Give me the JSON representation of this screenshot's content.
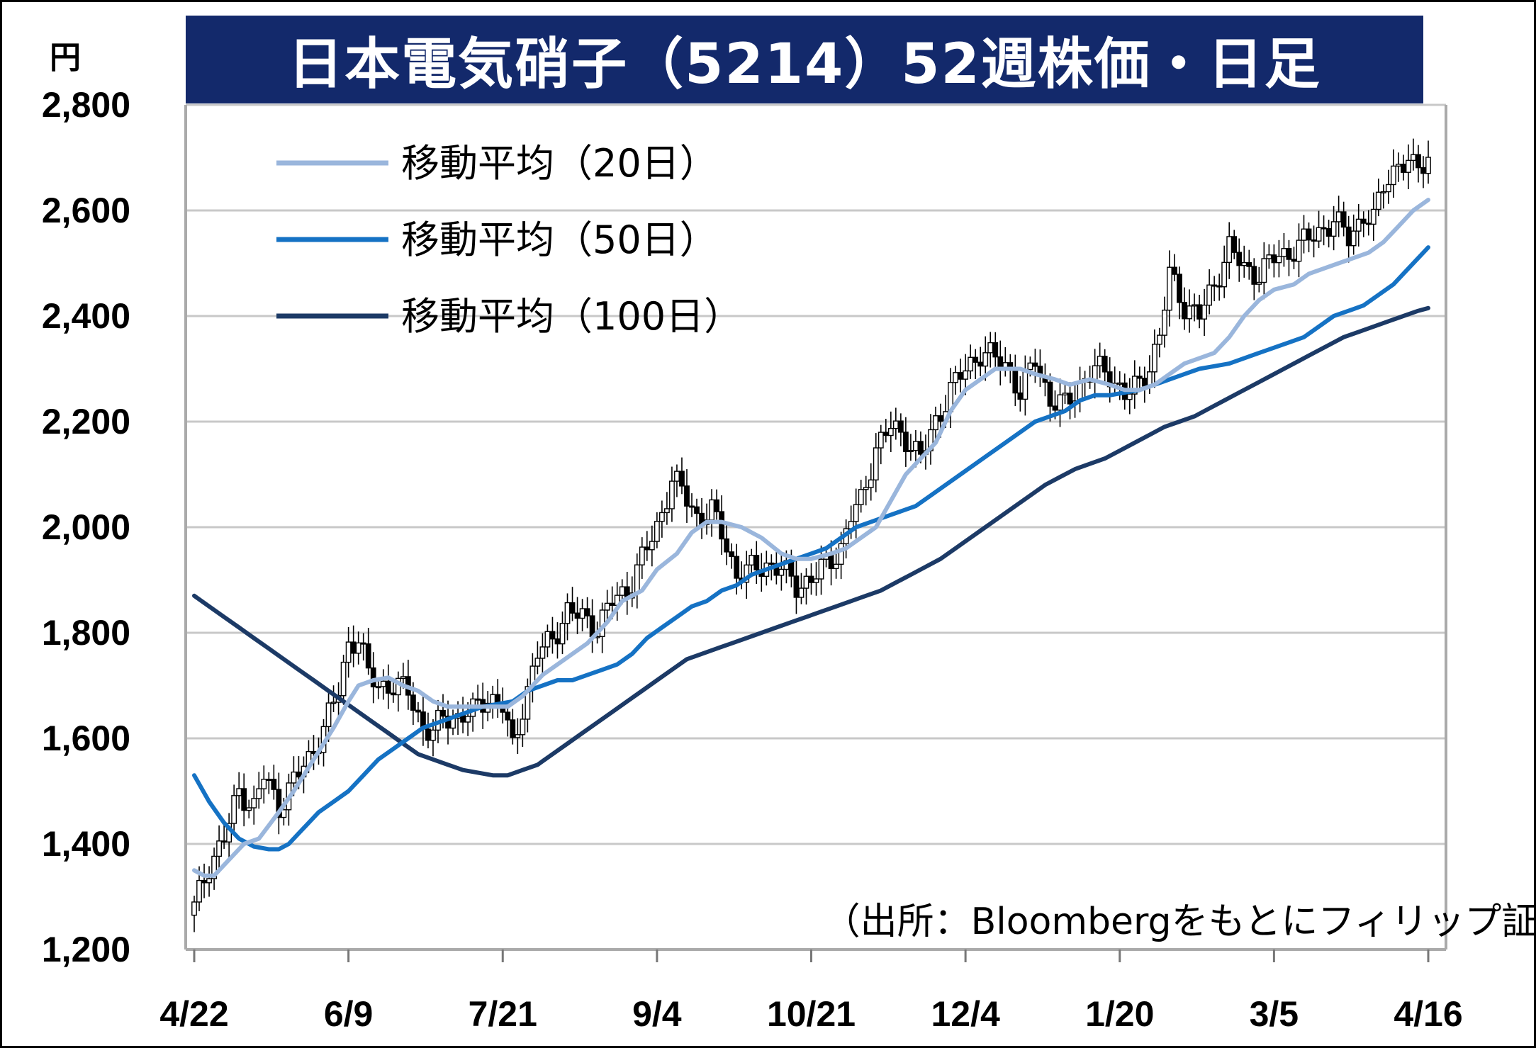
{
  "unit": "円",
  "title": "日本電気硝子（5214）52週株価・日足",
  "source": "（出所：Bloombergをもとにフィリップ証券作成）",
  "legend": [
    {
      "label": "移動平均（20日）",
      "color": "#9ab6dc"
    },
    {
      "label": "移動平均（50日）",
      "color": "#1572c4"
    },
    {
      "label": "移動平均（100日）",
      "color": "#1c3a66"
    }
  ],
  "chart_data": {
    "type": "candlestick",
    "ylim": [
      1200,
      2800
    ],
    "yticks": [
      "1,200",
      "1,400",
      "1,600",
      "1,800",
      "2,000",
      "2,200",
      "2,400",
      "2,600",
      "2,800"
    ],
    "xlim": [
      0,
      248
    ],
    "xticks": [
      {
        "label": "4/22",
        "x": 0
      },
      {
        "label": "6/9",
        "x": 31
      },
      {
        "label": "7/21",
        "x": 62
      },
      {
        "label": "9/4",
        "x": 93
      },
      {
        "label": "10/21",
        "x": 124
      },
      {
        "label": "12/4",
        "x": 155
      },
      {
        "label": "1/20",
        "x": 186
      },
      {
        "label": "3/5",
        "x": 217
      },
      {
        "label": "4/16",
        "x": 248
      }
    ],
    "grid": true,
    "legend_position": "top-left",
    "close_points": [
      [
        0,
        1280
      ],
      [
        3,
        1360
      ],
      [
        6,
        1410
      ],
      [
        9,
        1500
      ],
      [
        12,
        1470
      ],
      [
        14,
        1530
      ],
      [
        17,
        1470
      ],
      [
        20,
        1520
      ],
      [
        23,
        1560
      ],
      [
        26,
        1620
      ],
      [
        29,
        1690
      ],
      [
        31,
        1780
      ],
      [
        33,
        1790
      ],
      [
        35,
        1720
      ],
      [
        37,
        1700
      ],
      [
        40,
        1700
      ],
      [
        43,
        1690
      ],
      [
        46,
        1620
      ],
      [
        48,
        1610
      ],
      [
        50,
        1640
      ],
      [
        53,
        1640
      ],
      [
        56,
        1650
      ],
      [
        59,
        1680
      ],
      [
        62,
        1660
      ],
      [
        64,
        1580
      ],
      [
        66,
        1660
      ],
      [
        69,
        1760
      ],
      [
        72,
        1790
      ],
      [
        75,
        1840
      ],
      [
        78,
        1830
      ],
      [
        81,
        1810
      ],
      [
        84,
        1860
      ],
      [
        87,
        1880
      ],
      [
        90,
        1940
      ],
      [
        93,
        2000
      ],
      [
        96,
        2090
      ],
      [
        98,
        2070
      ],
      [
        101,
        2020
      ],
      [
        104,
        2030
      ],
      [
        106,
        1990
      ],
      [
        109,
        1910
      ],
      [
        112,
        1920
      ],
      [
        115,
        1930
      ],
      [
        118,
        1920
      ],
      [
        121,
        1890
      ],
      [
        124,
        1900
      ],
      [
        127,
        1930
      ],
      [
        130,
        1960
      ],
      [
        132,
        2020
      ],
      [
        134,
        2050
      ],
      [
        137,
        2150
      ],
      [
        140,
        2190
      ],
      [
        143,
        2170
      ],
      [
        146,
        2130
      ],
      [
        149,
        2200
      ],
      [
        152,
        2260
      ],
      [
        155,
        2300
      ],
      [
        158,
        2330
      ],
      [
        161,
        2320
      ],
      [
        164,
        2300
      ],
      [
        166,
        2250
      ],
      [
        169,
        2320
      ],
      [
        172,
        2240
      ],
      [
        175,
        2230
      ],
      [
        178,
        2270
      ],
      [
        181,
        2300
      ],
      [
        184,
        2290
      ],
      [
        187,
        2250
      ],
      [
        190,
        2270
      ],
      [
        192,
        2310
      ],
      [
        194,
        2360
      ],
      [
        196,
        2480
      ],
      [
        199,
        2420
      ],
      [
        202,
        2400
      ],
      [
        205,
        2460
      ],
      [
        208,
        2530
      ],
      [
        211,
        2490
      ],
      [
        214,
        2480
      ],
      [
        217,
        2510
      ],
      [
        220,
        2520
      ],
      [
        223,
        2540
      ],
      [
        226,
        2560
      ],
      [
        229,
        2580
      ],
      [
        232,
        2550
      ],
      [
        235,
        2590
      ],
      [
        237,
        2580
      ],
      [
        239,
        2650
      ],
      [
        242,
        2690
      ],
      [
        245,
        2680
      ],
      [
        248,
        2700
      ]
    ],
    "series": [
      {
        "name": "移動平均（20日）",
        "color": "#9ab6dc",
        "x": [
          0,
          2,
          4,
          7,
          10,
          13,
          17,
          20,
          24,
          28,
          31,
          33,
          36,
          39,
          42,
          45,
          48,
          51,
          54,
          57,
          60,
          63,
          66,
          70,
          73,
          76,
          79,
          83,
          86,
          90,
          93,
          97,
          100,
          103,
          106,
          110,
          114,
          118,
          121,
          124,
          128,
          131,
          134,
          137,
          140,
          143,
          146,
          149,
          152,
          155,
          158,
          161,
          164,
          166,
          169,
          173,
          176,
          180,
          184,
          187,
          190,
          193,
          196,
          199,
          202,
          205,
          208,
          211,
          214,
          217,
          221,
          224,
          227,
          230,
          233,
          236,
          239,
          242,
          245,
          248
        ],
        "values": [
          1350,
          1340,
          1340,
          1370,
          1400,
          1410,
          1460,
          1500,
          1560,
          1620,
          1670,
          1700,
          1710,
          1715,
          1700,
          1690,
          1670,
          1660,
          1660,
          1660,
          1660,
          1660,
          1680,
          1720,
          1740,
          1760,
          1780,
          1820,
          1860,
          1880,
          1920,
          1950,
          1990,
          2010,
          2010,
          2000,
          1980,
          1950,
          1940,
          1940,
          1950,
          1960,
          1980,
          2000,
          2050,
          2100,
          2130,
          2160,
          2220,
          2260,
          2280,
          2300,
          2300,
          2300,
          2290,
          2280,
          2270,
          2280,
          2270,
          2260,
          2260,
          2270,
          2290,
          2310,
          2320,
          2330,
          2360,
          2400,
          2430,
          2450,
          2460,
          2480,
          2490,
          2500,
          2510,
          2520,
          2540,
          2570,
          2600,
          2620
        ]
      },
      {
        "name": "移動平均（50日）",
        "color": "#1572c4",
        "x": [
          0,
          3,
          6,
          9,
          12,
          15,
          17,
          19,
          21,
          23,
          25,
          28,
          31,
          34,
          37,
          40,
          43,
          46,
          49,
          52,
          55,
          58,
          61,
          64,
          67,
          70,
          73,
          76,
          79,
          82,
          85,
          88,
          91,
          94,
          97,
          100,
          103,
          106,
          109,
          112,
          115,
          118,
          121,
          124,
          127,
          130,
          133,
          136,
          139,
          142,
          145,
          148,
          151,
          154,
          157,
          160,
          163,
          166,
          169,
          172,
          175,
          178,
          181,
          184,
          187,
          190,
          193,
          196,
          199,
          202,
          205,
          208,
          211,
          214,
          217,
          220,
          223,
          226,
          229,
          232,
          235,
          238,
          241,
          244,
          247,
          248
        ],
        "values": [
          1530,
          1480,
          1440,
          1410,
          1395,
          1390,
          1390,
          1400,
          1420,
          1440,
          1460,
          1480,
          1500,
          1530,
          1560,
          1580,
          1600,
          1620,
          1630,
          1640,
          1650,
          1660,
          1665,
          1670,
          1690,
          1700,
          1710,
          1710,
          1720,
          1730,
          1740,
          1760,
          1790,
          1810,
          1830,
          1850,
          1860,
          1880,
          1890,
          1910,
          1920,
          1930,
          1940,
          1950,
          1960,
          1980,
          2000,
          2010,
          2020,
          2030,
          2040,
          2060,
          2080,
          2100,
          2120,
          2140,
          2160,
          2180,
          2200,
          2210,
          2220,
          2240,
          2250,
          2250,
          2255,
          2260,
          2270,
          2280,
          2290,
          2300,
          2305,
          2310,
          2320,
          2330,
          2340,
          2350,
          2360,
          2380,
          2400,
          2410,
          2420,
          2440,
          2460,
          2490,
          2520,
          2530
        ]
      },
      {
        "name": "移動平均（100日）",
        "color": "#1c3a66",
        "x": [
          0,
          3,
          6,
          9,
          12,
          15,
          18,
          21,
          24,
          27,
          30,
          33,
          36,
          39,
          42,
          45,
          48,
          51,
          54,
          57,
          60,
          63,
          66,
          69,
          72,
          75,
          78,
          81,
          84,
          87,
          90,
          93,
          96,
          99,
          102,
          105,
          108,
          111,
          114,
          117,
          120,
          123,
          126,
          129,
          132,
          135,
          138,
          141,
          144,
          147,
          150,
          153,
          156,
          159,
          162,
          165,
          168,
          171,
          174,
          177,
          180,
          183,
          186,
          189,
          192,
          195,
          198,
          201,
          204,
          207,
          210,
          213,
          216,
          219,
          222,
          225,
          228,
          231,
          234,
          237,
          240,
          243,
          246,
          248
        ],
        "values": [
          1870,
          1850,
          1830,
          1810,
          1790,
          1770,
          1750,
          1730,
          1710,
          1690,
          1670,
          1650,
          1630,
          1610,
          1590,
          1570,
          1560,
          1550,
          1540,
          1535,
          1530,
          1530,
          1540,
          1550,
          1570,
          1590,
          1610,
          1630,
          1650,
          1670,
          1690,
          1710,
          1730,
          1750,
          1760,
          1770,
          1780,
          1790,
          1800,
          1810,
          1820,
          1830,
          1840,
          1850,
          1860,
          1870,
          1880,
          1895,
          1910,
          1925,
          1940,
          1960,
          1980,
          2000,
          2020,
          2040,
          2060,
          2080,
          2095,
          2110,
          2120,
          2130,
          2145,
          2160,
          2175,
          2190,
          2200,
          2210,
          2225,
          2240,
          2255,
          2270,
          2285,
          2300,
          2315,
          2330,
          2345,
          2360,
          2370,
          2380,
          2390,
          2400,
          2410,
          2415
        ]
      }
    ]
  }
}
